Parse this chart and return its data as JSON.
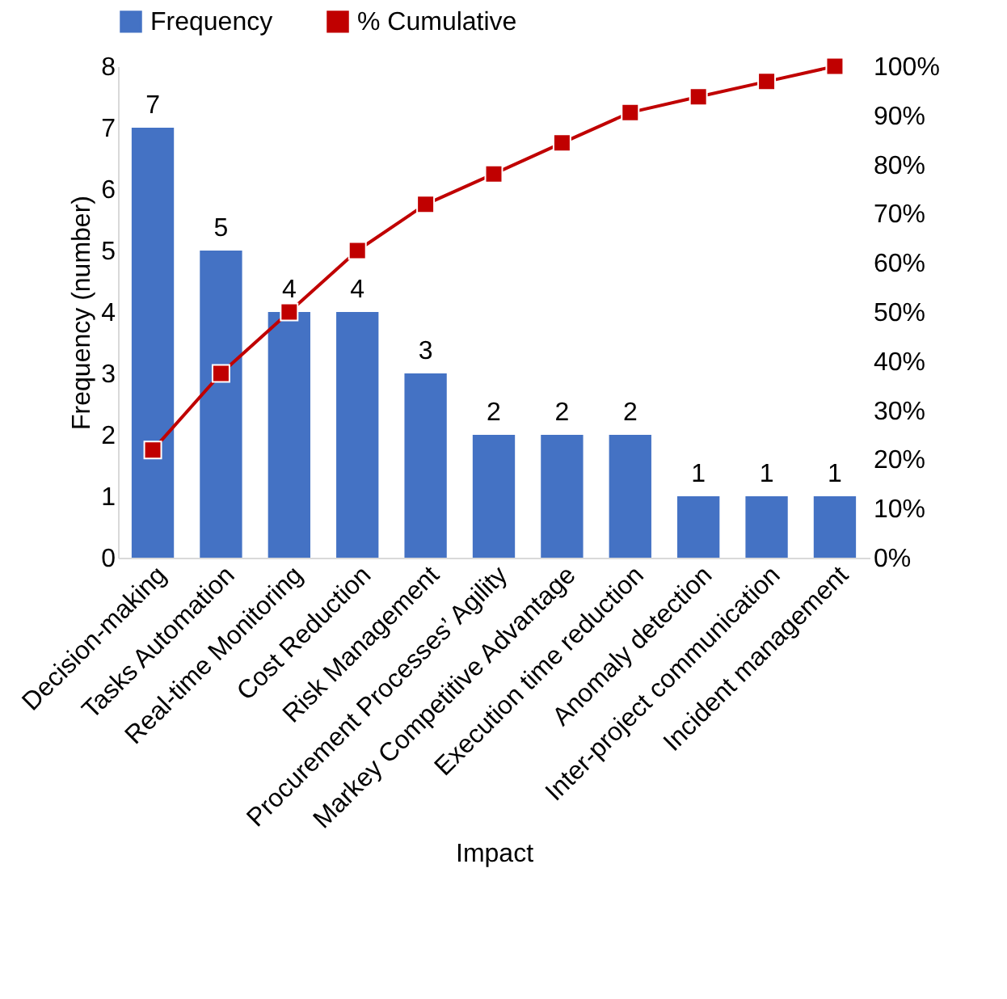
{
  "chart_data": {
    "type": "bar",
    "xlabel": "Impact",
    "ylabel": "Frequency (number)",
    "categories": [
      "Decision-making",
      "Tasks Automation",
      "Real-time Monitoring",
      "Cost Reduction",
      "Risk Management",
      "Procurement Processes’ Agility",
      "Markey Competitive Advantage",
      "Execution time reduction",
      "Anomaly detection",
      "Inter-project communication",
      "Incident management"
    ],
    "series": [
      {
        "name": "Frequency",
        "color": "#4472c4",
        "values": [
          7,
          5,
          4,
          4,
          3,
          2,
          2,
          2,
          1,
          1,
          1
        ],
        "value_labels": [
          "7",
          "5",
          "4",
          "4",
          "3",
          "2",
          "2",
          "2",
          "1",
          "1",
          "1"
        ]
      },
      {
        "name": "% Cumulative",
        "type": "line",
        "axis": "y2",
        "color": "#c00000",
        "values": [
          21.9,
          37.5,
          50,
          62.5,
          71.9,
          78.1,
          84.4,
          90.6,
          93.8,
          96.9,
          100
        ]
      }
    ],
    "ylim": [
      0,
      8
    ],
    "yticks": [
      0,
      1,
      2,
      3,
      4,
      5,
      6,
      7,
      8
    ],
    "y2lim": [
      0,
      100
    ],
    "y2ticks": [
      {
        "value": 0,
        "label": "0%"
      },
      {
        "value": 10,
        "label": "10%"
      },
      {
        "value": 20,
        "label": "20%"
      },
      {
        "value": 30,
        "label": "30%"
      },
      {
        "value": 40,
        "label": "40%"
      },
      {
        "value": 50,
        "label": "50%"
      },
      {
        "value": 60,
        "label": "60%"
      },
      {
        "value": 70,
        "label": "70%"
      },
      {
        "value": 80,
        "label": "80%"
      },
      {
        "value": 90,
        "label": "90%"
      },
      {
        "value": 100,
        "label": "100%"
      }
    ],
    "legend": "top",
    "grid": false,
    "marker": "square",
    "line_style": "solid"
  }
}
